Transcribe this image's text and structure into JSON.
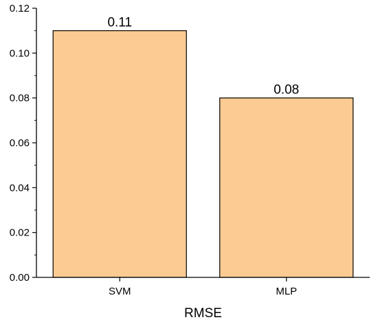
{
  "chart_data": {
    "type": "bar",
    "categories": [
      "SVM",
      "MLP"
    ],
    "values": [
      0.11,
      0.08
    ],
    "data_labels": [
      "0.11",
      "0.08"
    ],
    "title": "",
    "xlabel": "RMSE",
    "ylabel": "",
    "ylim": [
      0,
      0.12
    ],
    "yticks": [
      "0.00",
      "0.02",
      "0.04",
      "0.06",
      "0.08",
      "0.10",
      "0.12"
    ],
    "bar_color": "#FCCB93",
    "bar_edge_color": "#000000",
    "grid": false,
    "legend": "none"
  }
}
